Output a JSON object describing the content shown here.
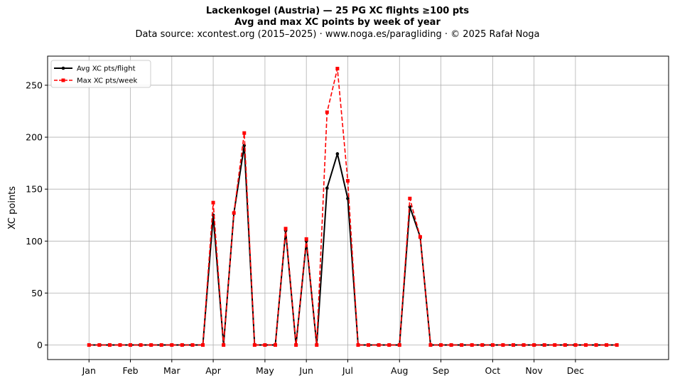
{
  "header": {
    "title": "Lackenkogel (Austria)  —  25 PG XC flights ≥100 pts",
    "subtitle": "Avg and max XC points by week of year",
    "source": "Data source: xcontest.org (2015–2025)  ·  www.noga.es/paragliding  ·  © 2025 Rafał Noga"
  },
  "chart_data": {
    "type": "line",
    "title": "Lackenkogel (Austria)  —  25 PG XC flights ≥100 pts",
    "subtitle": "Avg and max XC points by week of year",
    "xlabel": "",
    "ylabel": "XC points",
    "x": [
      1,
      2,
      3,
      4,
      5,
      6,
      7,
      8,
      9,
      10,
      11,
      12,
      13,
      14,
      15,
      16,
      17,
      18,
      19,
      20,
      21,
      22,
      23,
      24,
      25,
      26,
      27,
      28,
      29,
      30,
      31,
      32,
      33,
      34,
      35,
      36,
      37,
      38,
      39,
      40,
      41,
      42,
      43,
      44,
      45,
      46,
      47,
      48,
      49,
      50,
      51,
      52
    ],
    "xlim": [
      -3,
      57
    ],
    "ylim": [
      -14,
      278
    ],
    "yticks": [
      0,
      50,
      100,
      150,
      200,
      250
    ],
    "xticks": [
      {
        "x": 1,
        "label": "Jan"
      },
      {
        "x": 5,
        "label": "Feb"
      },
      {
        "x": 9,
        "label": "Mar"
      },
      {
        "x": 13,
        "label": "Apr"
      },
      {
        "x": 18,
        "label": "May"
      },
      {
        "x": 22,
        "label": "Jun"
      },
      {
        "x": 26,
        "label": "Jul"
      },
      {
        "x": 31,
        "label": "Aug"
      },
      {
        "x": 35,
        "label": "Sep"
      },
      {
        "x": 40,
        "label": "Oct"
      },
      {
        "x": 44,
        "label": "Nov"
      },
      {
        "x": 48,
        "label": "Dec"
      }
    ],
    "grid": true,
    "legend_position": "top-left",
    "series": [
      {
        "name": "Avg XC pts/flight",
        "color": "#000000",
        "style": "solid",
        "marker": "circle",
        "values": [
          0,
          0,
          0,
          0,
          0,
          0,
          0,
          0,
          0,
          0,
          0,
          0,
          125,
          0,
          127,
          192,
          0,
          0,
          0,
          110,
          0,
          100,
          0,
          151,
          184,
          141,
          0,
          0,
          0,
          0,
          0,
          133,
          104,
          0,
          0,
          0,
          0,
          0,
          0,
          0,
          0,
          0,
          0,
          0,
          0,
          0,
          0,
          0,
          0,
          0,
          0,
          0
        ]
      },
      {
        "name": "Max XC pts/week",
        "color": "#ff0000",
        "style": "dashed",
        "marker": "square",
        "values": [
          0,
          0,
          0,
          0,
          0,
          0,
          0,
          0,
          0,
          0,
          0,
          0,
          137,
          0,
          127,
          204,
          0,
          0,
          0,
          112,
          0,
          102,
          0,
          224,
          266,
          158,
          0,
          0,
          0,
          0,
          0,
          141,
          104,
          0,
          0,
          0,
          0,
          0,
          0,
          0,
          0,
          0,
          0,
          0,
          0,
          0,
          0,
          0,
          0,
          0,
          0,
          0
        ]
      }
    ]
  }
}
